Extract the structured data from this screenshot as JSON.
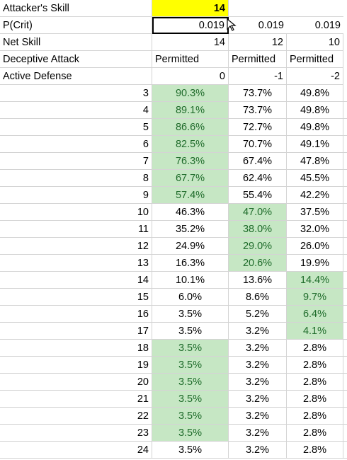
{
  "header_rows": [
    {
      "label": "Attacker's Skill",
      "b": "14",
      "c": "",
      "d": ""
    },
    {
      "label": "P(Crit)",
      "b": "0.019",
      "c": "0.019",
      "d": "0.019"
    },
    {
      "label": "Net Skill",
      "b": "14",
      "c": "12",
      "d": "10"
    },
    {
      "label": "Deceptive Attack",
      "b": "Permitted",
      "c": "Permitted",
      "d": "Permitted"
    },
    {
      "label": "Active Defense",
      "b": "0",
      "c": "-1",
      "d": "-2"
    }
  ],
  "rows": [
    {
      "roll": "3",
      "b": "90.3%",
      "c": "73.7%",
      "d": "49.8%"
    },
    {
      "roll": "4",
      "b": "89.1%",
      "c": "73.7%",
      "d": "49.8%"
    },
    {
      "roll": "5",
      "b": "86.6%",
      "c": "72.7%",
      "d": "49.8%"
    },
    {
      "roll": "6",
      "b": "82.5%",
      "c": "70.7%",
      "d": "49.1%"
    },
    {
      "roll": "7",
      "b": "76.3%",
      "c": "67.4%",
      "d": "47.8%"
    },
    {
      "roll": "8",
      "b": "67.7%",
      "c": "62.4%",
      "d": "45.5%"
    },
    {
      "roll": "9",
      "b": "57.4%",
      "c": "55.4%",
      "d": "42.2%"
    },
    {
      "roll": "10",
      "b": "46.3%",
      "c": "47.0%",
      "d": "37.5%"
    },
    {
      "roll": "11",
      "b": "35.2%",
      "c": "38.0%",
      "d": "32.0%"
    },
    {
      "roll": "12",
      "b": "24.9%",
      "c": "29.0%",
      "d": "26.0%"
    },
    {
      "roll": "13",
      "b": "16.3%",
      "c": "20.6%",
      "d": "19.9%"
    },
    {
      "roll": "14",
      "b": "10.1%",
      "c": "13.6%",
      "d": "14.4%"
    },
    {
      "roll": "15",
      "b": "6.0%",
      "c": "8.6%",
      "d": "9.7%"
    },
    {
      "roll": "16",
      "b": "3.5%",
      "c": "5.2%",
      "d": "6.4%"
    },
    {
      "roll": "17",
      "b": "3.5%",
      "c": "3.2%",
      "d": "4.1%"
    },
    {
      "roll": "18",
      "b": "3.5%",
      "c": "3.2%",
      "d": "2.8%"
    },
    {
      "roll": "19",
      "b": "3.5%",
      "c": "3.2%",
      "d": "2.8%"
    },
    {
      "roll": "20",
      "b": "3.5%",
      "c": "3.2%",
      "d": "2.8%"
    },
    {
      "roll": "21",
      "b": "3.5%",
      "c": "3.2%",
      "d": "2.8%"
    },
    {
      "roll": "22",
      "b": "3.5%",
      "c": "3.2%",
      "d": "2.8%"
    },
    {
      "roll": "23",
      "b": "3.5%",
      "c": "3.2%",
      "d": "2.8%"
    },
    {
      "roll": "24",
      "b": "3.5%",
      "c": "3.2%",
      "d": "2.8%"
    }
  ],
  "highlights": {
    "input_color": "#ffff00",
    "band_color": "#c6e7c4",
    "band_text_color": "#1e6b2a",
    "green_b_rolls": [
      "3",
      "4",
      "5",
      "6",
      "7",
      "8",
      "9",
      "18",
      "19",
      "20",
      "21",
      "22",
      "23"
    ],
    "green_c_rolls": [
      "10",
      "11",
      "12",
      "13"
    ],
    "green_d_rolls": [
      "14",
      "15",
      "16",
      "17"
    ]
  },
  "icons": {
    "cursor": "move-cursor-icon"
  }
}
